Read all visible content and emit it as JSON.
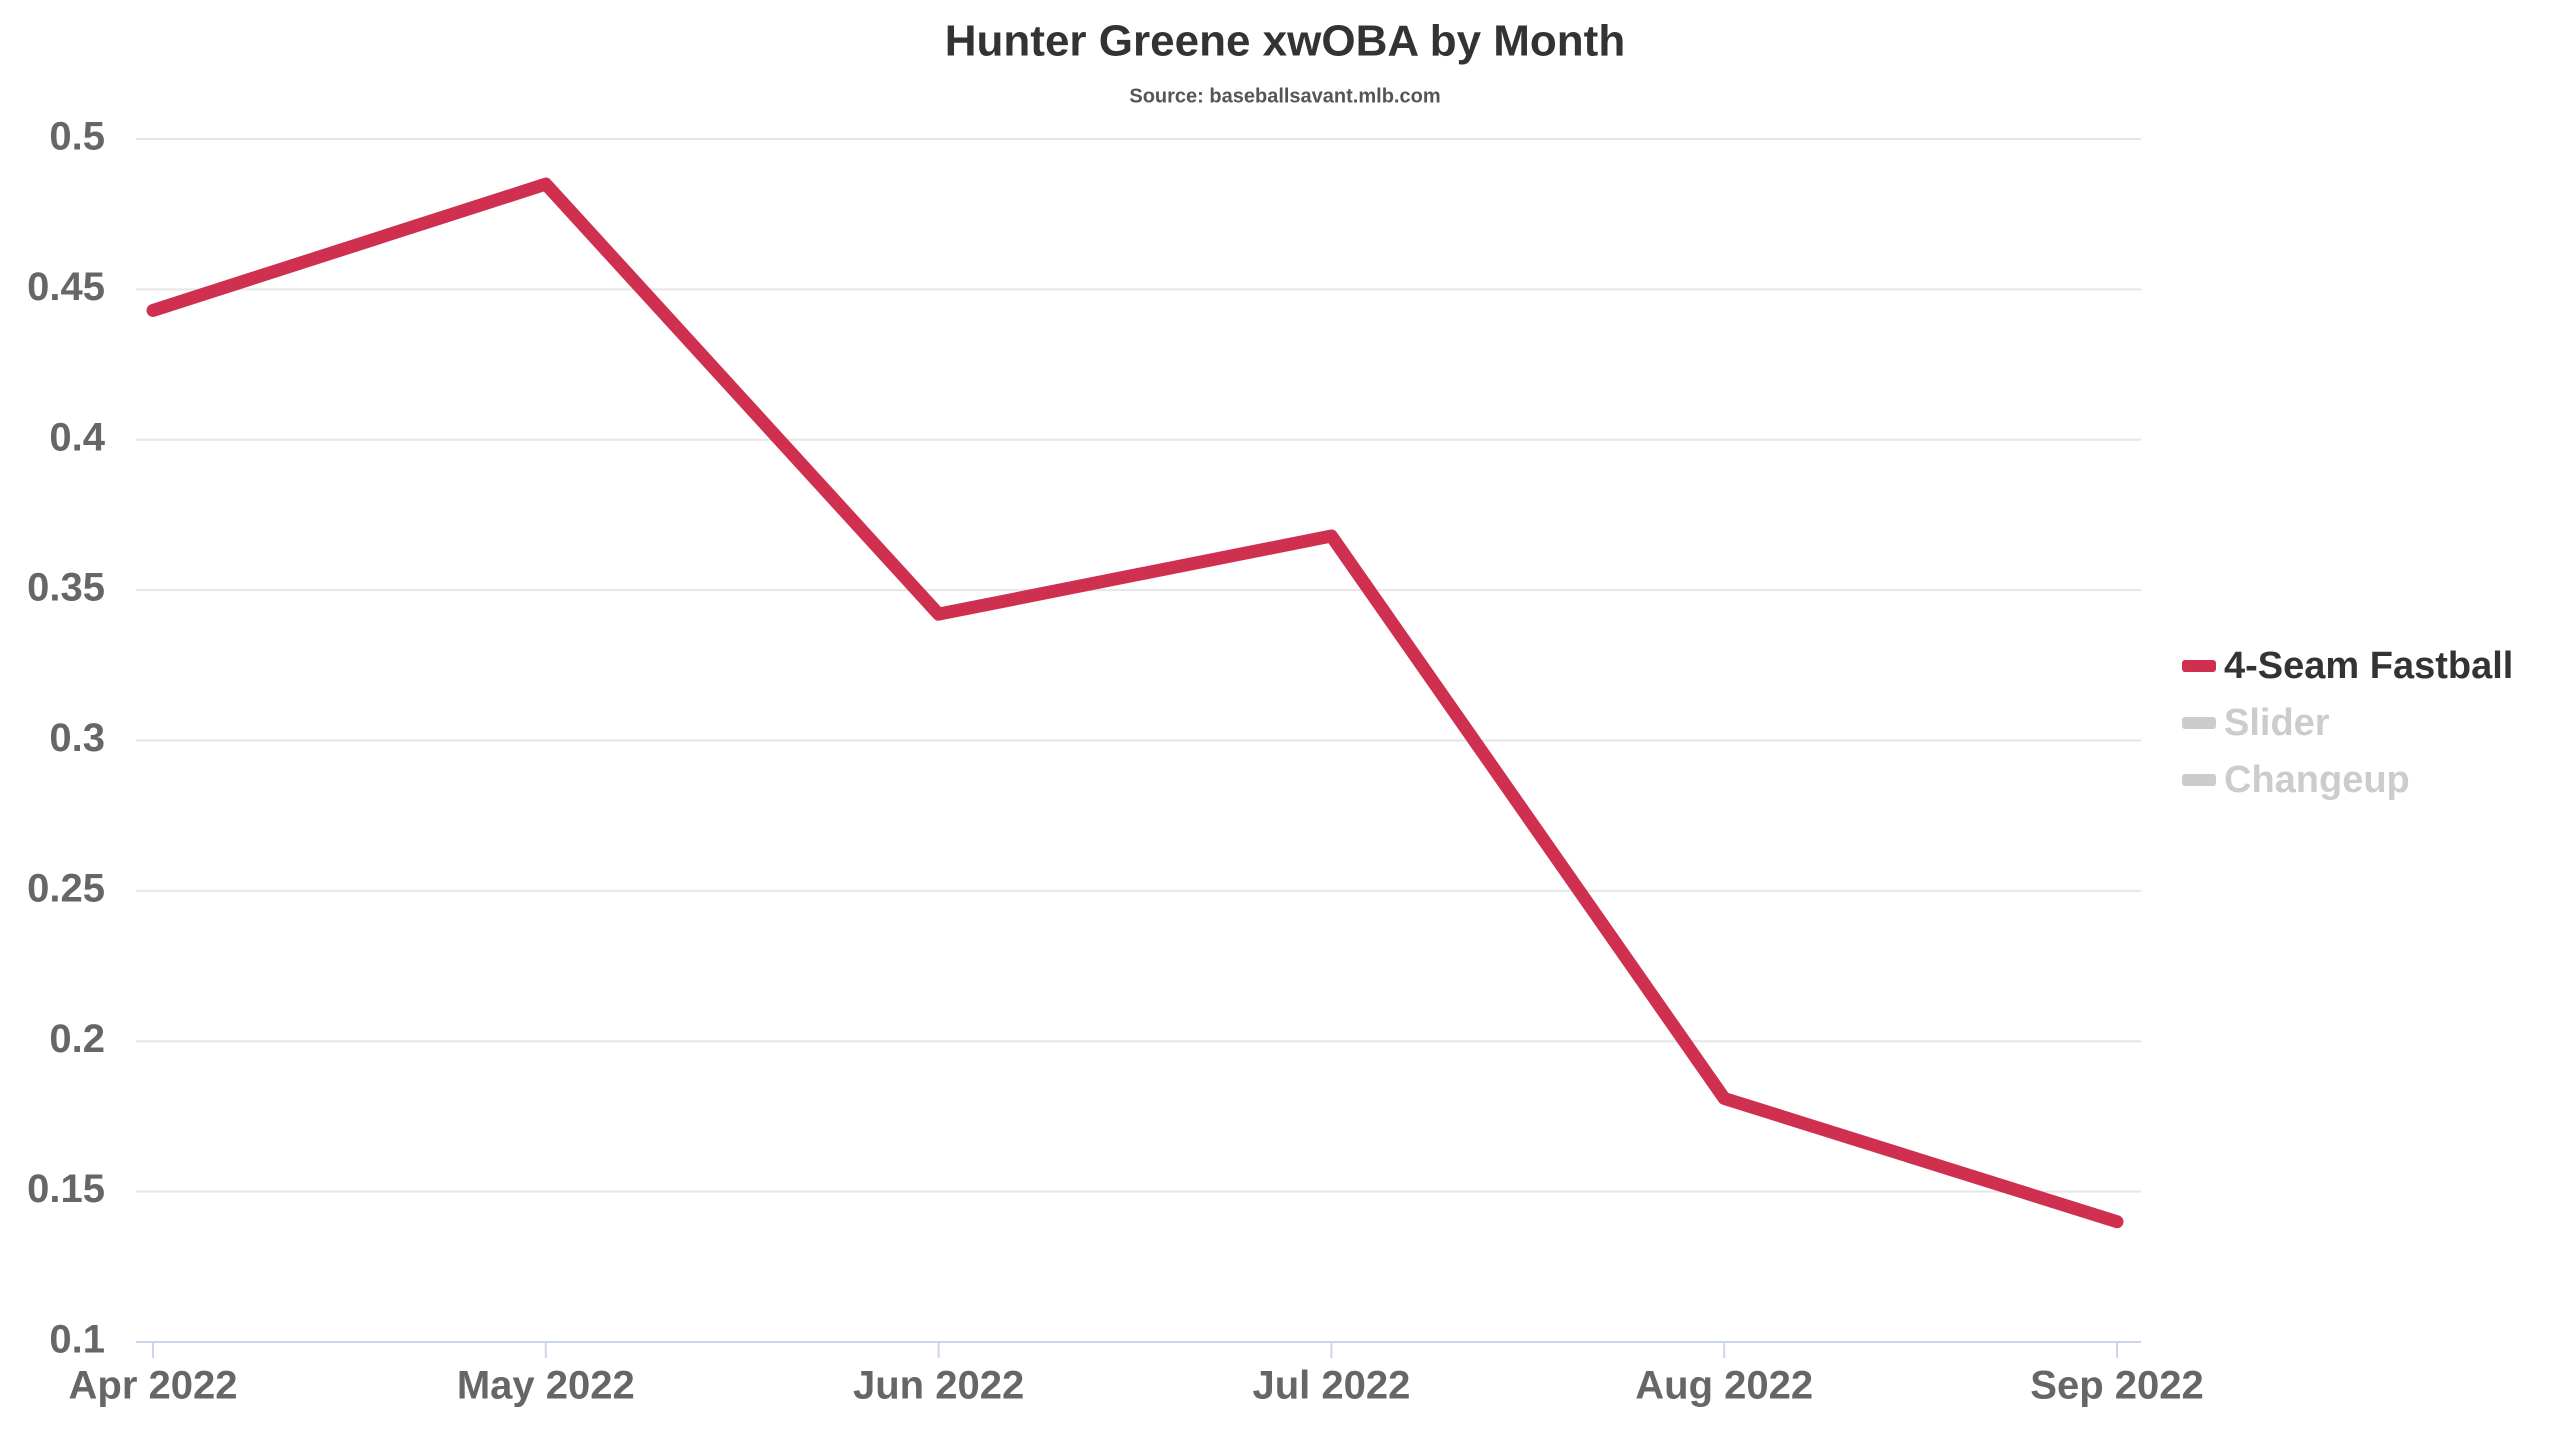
{
  "chart_data": {
    "type": "line",
    "title": "Hunter Greene xwOBA by Month",
    "subtitle": "Source: baseballsavant.mlb.com",
    "categories": [
      "Apr 2022",
      "May 2022",
      "Jun 2022",
      "Jul 2022",
      "Aug 2022",
      "Sep 2022"
    ],
    "series": [
      {
        "name": "4-Seam Fastball",
        "color": "#d0304f",
        "visible": true,
        "values": [
          0.443,
          0.485,
          0.342,
          0.368,
          0.181,
          0.14
        ]
      },
      {
        "name": "Slider",
        "color": "#cccccc",
        "visible": false,
        "values": [
          null,
          null,
          null,
          null,
          null,
          null
        ]
      },
      {
        "name": "Changeup",
        "color": "#cccccc",
        "visible": false,
        "values": [
          null,
          null,
          null,
          null,
          null,
          null
        ]
      }
    ],
    "ylim": [
      0.1,
      0.5
    ],
    "yticks": [
      0.1,
      0.15,
      0.2,
      0.25,
      0.3,
      0.35,
      0.4,
      0.45,
      0.5
    ],
    "grid": true,
    "legend": "right"
  }
}
